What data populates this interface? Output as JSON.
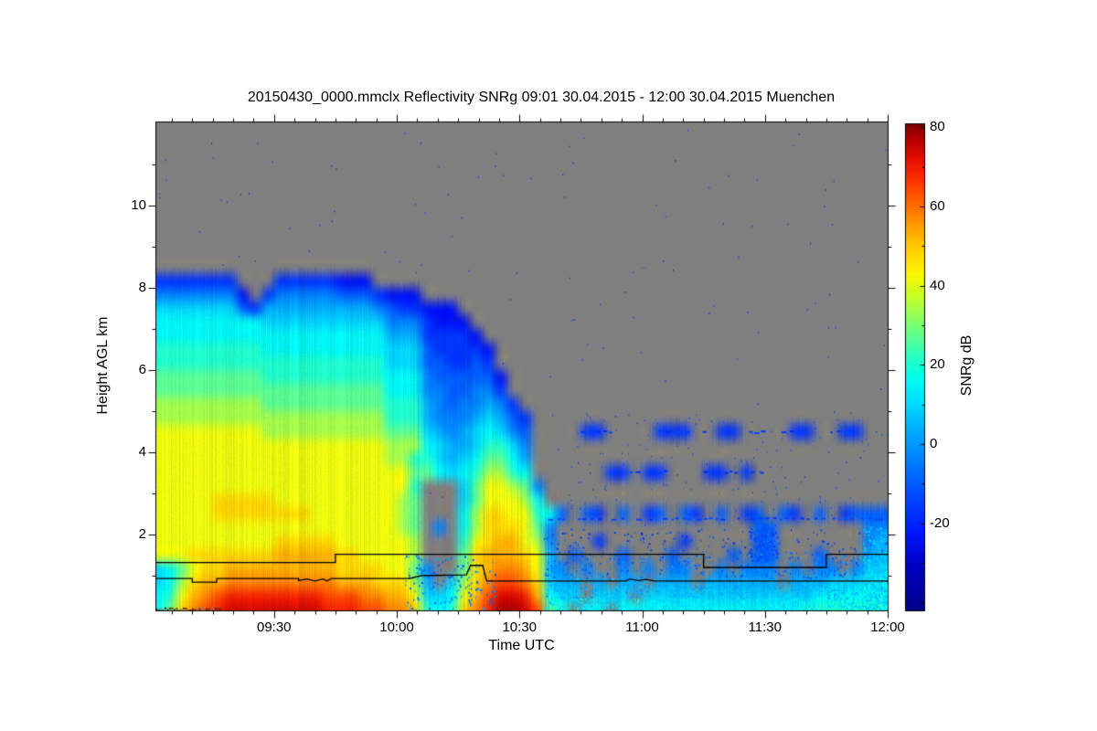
{
  "chart_data": {
    "type": "heatmap",
    "title": "20150430_0000.mmclx Reflectivity SNRg   09:01 30.04.2015 - 12:00 30.04.2015 Muenchen",
    "xlabel": "Time UTC",
    "ylabel": "Height AGL km",
    "colorbar_label": "SNRg dB",
    "station": "Muenchen",
    "time_span": {
      "start": "09:01 30.04.2015",
      "end": "12:00 30.04.2015",
      "start_min": 1,
      "end_min": 180
    },
    "x_ticks": [
      {
        "label": "09:30",
        "min": 30
      },
      {
        "label": "10:00",
        "min": 60
      },
      {
        "label": "10:30",
        "min": 90
      },
      {
        "label": "11:00",
        "min": 120
      },
      {
        "label": "11:30",
        "min": 150
      },
      {
        "label": "12:00",
        "min": 180
      }
    ],
    "x_minor_tick_step_min": 5,
    "y_ticks_km": [
      2,
      4,
      6,
      8,
      10
    ],
    "y_minor_ticks_km": [
      1,
      3,
      5,
      7,
      9,
      11
    ],
    "y_range_km": [
      0.16,
      12.04
    ],
    "no_data_color": "#7f7f7f",
    "colorbar": {
      "min_db": -42,
      "max_db": 81,
      "tick_labels": [
        80,
        60,
        40,
        20,
        0,
        -20
      ],
      "minor_tick_step_db": 10,
      "stops": [
        [
          -42,
          "#000089"
        ],
        [
          -30,
          "#0000c8"
        ],
        [
          -22,
          "#0018ff"
        ],
        [
          -12,
          "#0050ff"
        ],
        [
          -4,
          "#0080ff"
        ],
        [
          4,
          "#00b0ff"
        ],
        [
          11,
          "#00e0ff"
        ],
        [
          17,
          "#00ffee"
        ],
        [
          23,
          "#30ffbb"
        ],
        [
          28,
          "#66ff88"
        ],
        [
          33,
          "#99ff55"
        ],
        [
          38,
          "#ccff22"
        ],
        [
          43,
          "#fff700"
        ],
        [
          49,
          "#ffd000"
        ],
        [
          55,
          "#ffa000"
        ],
        [
          61,
          "#ff6400"
        ],
        [
          67,
          "#ff3000"
        ],
        [
          72,
          "#e60f00"
        ],
        [
          77,
          "#b80000"
        ],
        [
          81,
          "#7d0000"
        ]
      ]
    },
    "grid": {
      "cols": 60,
      "rows": 36,
      "t0_min": 0,
      "dt_min": 3,
      "h0_km": 0,
      "dh_km": 0.33333,
      "note": "coarse SNRg field; chars map to dB via levels, '.' = no echo (gray)",
      "levels": {
        ".": null,
        "0": -30,
        "1": -24,
        "2": -17,
        "3": -10,
        "4": -4,
        "5": 3,
        "6": 9,
        "7": 15,
        "8": 21,
        "9": 27,
        "A": 34,
        "B": 41,
        "C": 48,
        "D": 53,
        "E": 58,
        "F": 64,
        "G": 69,
        "H": 74,
        "I": 78
      },
      "rows_top_to_bottom": [
        "............................................................",
        "............................................................",
        "............................................................",
        "............................................................",
        "............................................................",
        "............................................................",
        "............................................................",
        "............................................................",
        "............................................................",
        "............................................................",
        "............................................................",
        "2222222...22222111..........................................",
        "44444441.2444443332111......................................",
        "6666666325555555554322111...................................",
        "77777777766666666664442111..................................",
        "777777777777777777755522221.................................",
        "8888888887777777777666322221................................",
        "8888888888888888888666332232................................",
        "99999999988888888887774333331...............................",
        "99999999999999999997774433442...............................",
        "AAAAAAAAA999999999988854344542..............................",
        "AAAAAAAAAAAAAAAAAAA888544456532.............................",
        "BBBBBBBBBAAAAAAAAAA999654567643....22....222..22....22..22..",
        "BBBBBBBBBBBBBBBBBBBAAA765568864.............................",
        "BBBBBBBBBBBBBBBBBBBAA8865679975.............................",
        "BBBBBBBBBBBBBBBBBBBBB997678AA87......22.22...22.2...........",
        "BBBBBBBBBBBBBBBBBBBBB8...69BBA94............................",
        "BBBBBCCCCCBBBBBBBBBBA9...69BBBA7............................",
        "BBBBBCCCCCCCCBBBBBBBA9...7ACCBB873.32.3.23.32.3.23.32.3.2333",
        "BBBBBBBBBBBBBBBBBBBBA9.4.7ACCCB94................33.......44",
        "BBBBBBBBBBCCCCCBBBBBBA...8BCDDBA4...2......2.....33.......45",
        "BBBCCCCCCCDDDDDCCBBBBA...9CDDDCB5.3...3...3....3.33...3...55",
        "679BCCDDDDDDDDDCCCCBB94..9CDEEDB54.4..4.4.44..4.444.4.44.466",
        "67ACDDEEEEEEEEEDDDCCCA5.6ACEFFEC655.5.55.555.555555.55566677",
        "78BDEFGGGGGGGGFFFEEDDB667BDFHHGD766.666.66666666666666777777",
        "79CEFGHHHHHHHHGGGFFEEC878CEGIIHF98.77.7777777777777778888888"
      ]
    },
    "speckle_regions": [
      {
        "t": [
          96,
          180
        ],
        "h": [
          0.03,
          0.45
        ],
        "density": 0.45,
        "v": [
          6,
          18
        ],
        "size": 2
      },
      {
        "t": [
          96,
          180
        ],
        "h": [
          0.45,
          0.95
        ],
        "density": 0.3,
        "v": [
          -2,
          10
        ],
        "size": 2
      },
      {
        "t": [
          96,
          180
        ],
        "h": [
          0.95,
          1.6
        ],
        "density": 0.15,
        "v": [
          -14,
          2
        ],
        "size": 2
      },
      {
        "t": [
          96,
          180
        ],
        "h": [
          1.6,
          2.15
        ],
        "density": 0.05,
        "v": [
          -20,
          -8
        ],
        "size": 2
      },
      {
        "t": [
          62,
          84
        ],
        "h": [
          0.05,
          1.5
        ],
        "density": 0.12,
        "v": [
          -14,
          6
        ],
        "size": 2
      },
      {
        "t": [
          146,
          153
        ],
        "h": [
          1.3,
          2.3
        ],
        "density": 0.4,
        "v": [
          -16,
          -4
        ],
        "size": 2
      },
      {
        "t": [
          174,
          180
        ],
        "h": [
          0.05,
          2.2
        ],
        "density": 0.45,
        "v": [
          2,
          14
        ],
        "size": 2
      },
      {
        "t": [
          100,
          180
        ],
        "h": [
          2.2,
          5.0
        ],
        "density": 0.012,
        "v": [
          -20,
          -10
        ],
        "size": 1,
        "skip_echo": true
      },
      {
        "t": [
          1,
          180
        ],
        "h": [
          2.3,
          11.9
        ],
        "density": 0.002,
        "v": [
          -22,
          -12
        ],
        "size": 1,
        "skip_echo": true
      }
    ],
    "artifact_lines": [
      {
        "h_km": 2.38,
        "v_db": -14,
        "segments": [
          [
            97,
            180
          ]
        ]
      },
      {
        "h_km": 3.52,
        "v_db": -16,
        "segments": [
          [
            112,
            126
          ],
          [
            135,
            149
          ]
        ]
      },
      {
        "h_km": 4.49,
        "v_db": -16,
        "segments": [
          [
            105,
            112
          ],
          [
            124,
            131
          ],
          [
            133,
            137
          ],
          [
            146,
            150
          ],
          [
            154,
            158
          ],
          [
            166,
            172
          ]
        ]
      }
    ],
    "contour_lines": {
      "color": "#000000",
      "upper": [
        [
          1,
          1.32
        ],
        [
          45,
          1.32
        ],
        [
          45,
          1.52
        ],
        [
          135,
          1.52
        ],
        [
          135,
          1.2
        ],
        [
          165,
          1.2
        ],
        [
          165,
          1.52
        ],
        [
          180,
          1.52
        ]
      ],
      "lower": [
        [
          1,
          0.93
        ],
        [
          10,
          0.93
        ],
        [
          10,
          0.84
        ],
        [
          16,
          0.84
        ],
        [
          16,
          0.93
        ],
        [
          36,
          0.93
        ],
        [
          36,
          0.88
        ],
        [
          38,
          0.92
        ],
        [
          40,
          0.87
        ],
        [
          42,
          0.92
        ],
        [
          43,
          0.87
        ],
        [
          44,
          0.93
        ],
        [
          63,
          0.93
        ],
        [
          66,
          1.0
        ],
        [
          77,
          1.02
        ],
        [
          78,
          1.25
        ],
        [
          81,
          1.25
        ],
        [
          82,
          0.87
        ],
        [
          116,
          0.87
        ],
        [
          117,
          0.92
        ],
        [
          119,
          0.88
        ],
        [
          121,
          0.91
        ],
        [
          123,
          0.87
        ],
        [
          180,
          0.87
        ]
      ]
    },
    "clutter_band": {
      "t": [
        1,
        17
      ],
      "h_km": 0.2,
      "colors": [
        "#5f2014",
        "#7f7f7f"
      ]
    }
  }
}
